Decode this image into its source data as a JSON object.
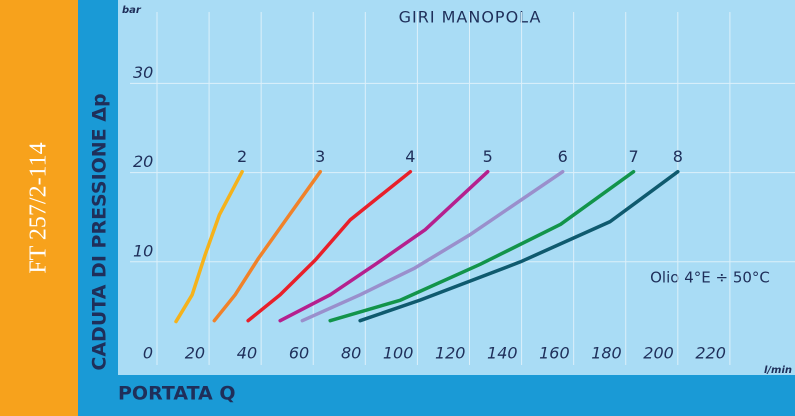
{
  "side_label": "FT 257/2-114",
  "chart_data": {
    "type": "line",
    "title": "GIRI MANOPOLA",
    "y_label": "CADUTA DI PRESSIONE Δp",
    "x_label": "PORTATA Q",
    "y_unit": "bar",
    "x_unit": "l/min",
    "annotation": "Olio 4°E ÷ 50°C",
    "xlim": [
      0,
      245
    ],
    "xticks": [
      0,
      20,
      40,
      60,
      80,
      100,
      120,
      140,
      160,
      180,
      200,
      220
    ],
    "ylim": [
      0,
      38
    ],
    "yticks": [
      10,
      20,
      30
    ],
    "grid": true,
    "series": [
      {
        "name": "2",
        "color": "#f5b21b",
        "x": [
          7.3,
          13.5,
          18.5,
          24,
          32.7
        ],
        "values": [
          3.3,
          6.3,
          10.8,
          15.3,
          20.1
        ]
      },
      {
        "name": "3",
        "color": "#f0822a",
        "x": [
          22,
          30,
          39,
          49,
          62.7
        ],
        "values": [
          3.4,
          6.3,
          10.4,
          14.5,
          20.1
        ]
      },
      {
        "name": "4",
        "color": "#e8202a",
        "x": [
          35,
          47.3,
          60.8,
          74.2,
          97.3
        ],
        "values": [
          3.4,
          6.3,
          10.2,
          14.7,
          20.1
        ]
      },
      {
        "name": "5",
        "color": "#b5208e",
        "x": [
          47.3,
          66.5,
          83.8,
          103,
          127
        ],
        "values": [
          3.4,
          6.3,
          9.7,
          13.6,
          20.1
        ]
      },
      {
        "name": "6",
        "color": "#9a8fcc",
        "x": [
          55.8,
          78,
          99,
          120,
          155.8
        ],
        "values": [
          3.4,
          6.3,
          9.3,
          13,
          20.1
        ]
      },
      {
        "name": "7",
        "color": "#12944a",
        "x": [
          66.5,
          93.5,
          124,
          155,
          183
        ],
        "values": [
          3.4,
          5.7,
          9.7,
          14.2,
          20.1
        ]
      },
      {
        "name": "8",
        "color": "#0f5a6e",
        "x": [
          78,
          101,
          139.6,
          174,
          200
        ],
        "values": [
          3.4,
          5.7,
          10,
          14.5,
          20.1
        ]
      }
    ]
  }
}
